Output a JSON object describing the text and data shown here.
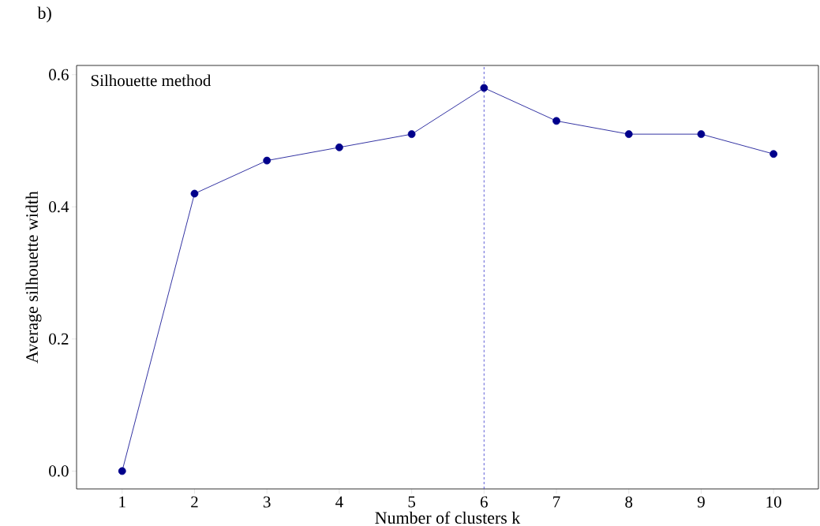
{
  "chart_data": {
    "type": "line",
    "xlabel": "Number of clusters k",
    "ylabel": "Average silhouette width",
    "annotations": [
      "b)",
      "Silhouette method"
    ],
    "x": [
      1,
      2,
      3,
      4,
      5,
      6,
      7,
      8,
      9,
      10
    ],
    "series": [
      {
        "color": "#00008b",
        "values": [
          0.0,
          0.42,
          0.47,
          0.49,
          0.51,
          0.58,
          0.53,
          0.51,
          0.51,
          0.48
        ]
      }
    ],
    "xlim": [
      0.37,
      10.62
    ],
    "ylim": [
      -0.027,
      0.614
    ],
    "xticks": [
      1,
      2,
      3,
      4,
      5,
      6,
      7,
      8,
      9,
      10
    ],
    "yticks": [
      {
        "value": 0,
        "label": "0.0"
      },
      {
        "value": 0.2,
        "label": "0.2"
      },
      {
        "value": 0.4,
        "label": "0.4"
      },
      {
        "value": 0.6,
        "label": "0.6"
      }
    ],
    "ref_lines": [
      {
        "axis": "x",
        "value": 6,
        "color": "#3333cc",
        "line_style": "dashed"
      }
    ],
    "marker": "circle",
    "line_style": "solid",
    "grid": false
  }
}
